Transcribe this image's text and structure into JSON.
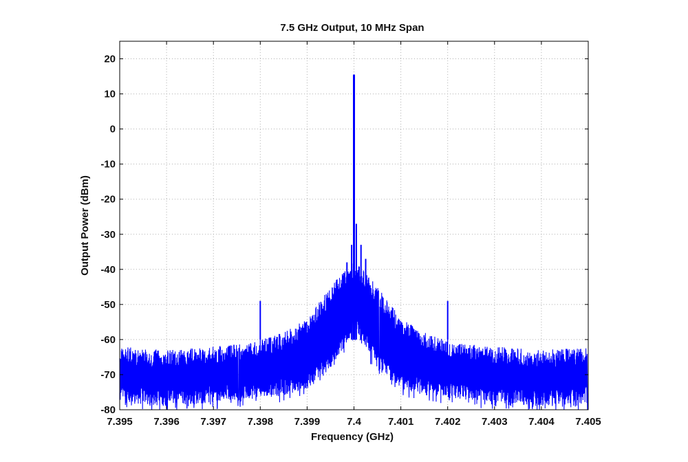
{
  "chart_data": {
    "type": "line",
    "title": "7.5 GHz Output, 10 MHz Span",
    "xlabel": "Frequency (GHz)",
    "ylabel": "Output Power (dBm)",
    "xlim": [
      7.395,
      7.405
    ],
    "ylim": [
      -80,
      25
    ],
    "x_ticks": [
      7.395,
      7.396,
      7.397,
      7.398,
      7.399,
      7.4,
      7.401,
      7.402,
      7.403,
      7.404,
      7.405
    ],
    "x_tick_labels": [
      "7.395",
      "7.396",
      "7.397",
      "7.398",
      "7.399",
      "7.4",
      "7.401",
      "7.402",
      "7.403",
      "7.404",
      "7.405"
    ],
    "y_ticks": [
      20,
      10,
      0,
      -10,
      -20,
      -30,
      -40,
      -50,
      -60,
      -70,
      -80
    ],
    "y_tick_labels": [
      "20",
      "10",
      "0",
      "-10",
      "-20",
      "-30",
      "-40",
      "-50",
      "-60",
      "-70",
      "-80"
    ],
    "grid": true,
    "line_color": "#0000ff",
    "series": [
      {
        "envelope_x": [
          7.395,
          7.396,
          7.397,
          7.3978,
          7.3985,
          7.399,
          7.3995,
          7.3998,
          7.4,
          7.4002,
          7.4005,
          7.401,
          7.4015,
          7.4022,
          7.403,
          7.404,
          7.405
        ],
        "envelope_upper": [
          -62,
          -63,
          -62,
          -61,
          -58,
          -54,
          -45,
          -40,
          -37,
          -40,
          -45,
          -54,
          -58,
          -61,
          -62,
          -63,
          -62
        ],
        "envelope_lower": [
          -78,
          -79,
          -78,
          -77,
          -76,
          -74,
          -68,
          -62,
          -58,
          -62,
          -68,
          -74,
          -76,
          -77,
          -78,
          -79,
          -78
        ],
        "peaks": [
          {
            "x": 7.398,
            "y": -49
          },
          {
            "x": 7.39985,
            "y": -38
          },
          {
            "x": 7.39995,
            "y": -33
          },
          {
            "x": 7.4,
            "y": 15.5
          },
          {
            "x": 7.40005,
            "y": -27
          },
          {
            "x": 7.40015,
            "y": -33
          },
          {
            "x": 7.40025,
            "y": -37
          },
          {
            "x": 7.402,
            "y": -49
          }
        ]
      }
    ]
  }
}
